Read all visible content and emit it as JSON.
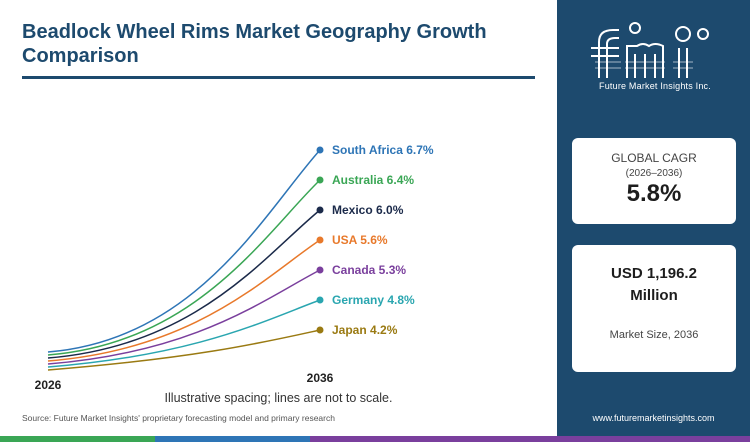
{
  "title": "Beadlock Wheel Rims Market Geography Growth Comparison",
  "chart_data": {
    "type": "line",
    "title": "Beadlock Wheel Rims Market Geography Growth Comparison",
    "x": [
      "2026",
      "2036"
    ],
    "note": "Illustrative spacing; lines are not to scale.",
    "series": [
      {
        "name": "South Africa",
        "label": "South Africa 6.7%",
        "cagr": 6.7,
        "color": "#2e75b6"
      },
      {
        "name": "Australia",
        "label": "Australia 6.4%",
        "cagr": 6.4,
        "color": "#3aa655"
      },
      {
        "name": "Mexico",
        "label": "Mexico 6.0%",
        "cagr": 6.0,
        "color": "#1b2a4a"
      },
      {
        "name": "USA",
        "label": "USA 5.6%",
        "cagr": 5.6,
        "color": "#e8792b"
      },
      {
        "name": "Canada",
        "label": "Canada 5.3%",
        "cagr": 5.3,
        "color": "#7a3f9d"
      },
      {
        "name": "Germany",
        "label": "Germany 4.8%",
        "cagr": 4.8,
        "color": "#2aa6b0"
      },
      {
        "name": "Japan",
        "label": "Japan 4.2%",
        "cagr": 4.2,
        "color": "#9a7a12"
      }
    ]
  },
  "source": "Source: Future Market Insights' proprietary forecasting model and primary research",
  "logo": {
    "text": "fmi",
    "tagline": "Future Market Insights Inc."
  },
  "cagr_card": {
    "title": "GLOBAL CAGR",
    "period": "(2026–2036)",
    "value": "5.8%"
  },
  "size_card": {
    "value_line1": "USD 1,196.2",
    "value_line2": "Million",
    "label": "Market Size, 2036"
  },
  "website": "www.futuremarketinsights.com",
  "colors": {
    "brand_navy": "#1d4a6e",
    "bar_green": "#3aa655",
    "bar_blue": "#2e75b6",
    "bar_purple": "#7a3f9d"
  }
}
